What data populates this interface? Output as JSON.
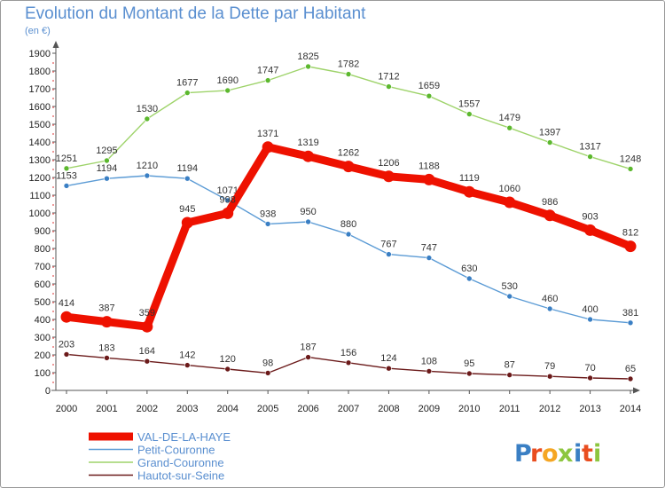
{
  "chart_data": {
    "type": "line",
    "title": "Evolution du Montant de la Dette par Habitant",
    "subtitle": "(en €)",
    "x": [
      "2000",
      "2001",
      "2002",
      "2003",
      "2004",
      "2005",
      "2006",
      "2007",
      "2008",
      "2009",
      "2010",
      "2011",
      "2012",
      "2013",
      "2014"
    ],
    "ylim": [
      0,
      1900
    ],
    "yticks": [
      0,
      100,
      200,
      300,
      400,
      500,
      600,
      700,
      800,
      900,
      1000,
      1100,
      1200,
      1300,
      1400,
      1500,
      1600,
      1700,
      1800,
      1900
    ],
    "grid": false,
    "legend_position": "bottom-left",
    "series": [
      {
        "name": "Grand-Couronne",
        "color": "#9ed36a",
        "marker": "#5cb82e",
        "values": [
          1251,
          1295,
          1530,
          1677,
          1690,
          1747,
          1825,
          1782,
          1712,
          1659,
          1557,
          1479,
          1397,
          1317,
          1248
        ]
      },
      {
        "name": "Petit-Couronne",
        "color": "#5b9bd5",
        "marker": "#3a7fc4",
        "values": [
          1153,
          1194,
          1210,
          1194,
          1071,
          938,
          950,
          880,
          767,
          747,
          630,
          530,
          460,
          400,
          381
        ]
      },
      {
        "name": "VAL-DE-LA-HAYE",
        "color": "#ee1100",
        "marker": "#ee1100",
        "values": [
          414,
          387,
          359,
          945,
          998,
          1371,
          1319,
          1262,
          1206,
          1188,
          1119,
          1060,
          986,
          903,
          812
        ]
      },
      {
        "name": "Hautot-sur-Seine",
        "color": "#6b1a1a",
        "marker": "#6b1a1a",
        "values": [
          203,
          183,
          164,
          142,
          120,
          98,
          187,
          156,
          124,
          108,
          95,
          87,
          79,
          70,
          65
        ]
      }
    ],
    "data_labels": [
      [
        "1251",
        "1295",
        "1530",
        "1677",
        "1690",
        "1747",
        "1825",
        "1782",
        "1712",
        "1659",
        "1557",
        "1479",
        "1397",
        "1317",
        "1248"
      ],
      [
        "1153",
        "1194",
        "1210",
        "1194",
        "1071",
        "938",
        "950",
        "880",
        "767",
        "747",
        "630",
        "530",
        "460",
        "400",
        "381"
      ],
      [
        "414",
        "387",
        "359",
        "945",
        "998",
        "1371",
        "1319",
        "1262",
        "1206",
        "1188",
        "1119",
        "1060",
        "986",
        "903",
        "812"
      ],
      [
        "203",
        "183",
        "164",
        "142",
        "120",
        "98",
        "187",
        "156",
        "124",
        "108",
        "95",
        "87",
        "79",
        "70",
        "65"
      ]
    ],
    "legend": [
      "VAL-DE-LA-HAYE",
      "Petit-Couronne",
      "Grand-Couronne",
      "Hautot-sur-Seine"
    ]
  },
  "brand": {
    "text": "Proxiti",
    "letters": [
      "P",
      "r",
      "o",
      "x",
      "i",
      "t",
      "i"
    ],
    "colors": [
      "#3a7fc4",
      "#e94d1f",
      "#f5a623",
      "#8dc63f",
      "#3a7fc4",
      "#e94d1f",
      "#8dc63f"
    ]
  }
}
